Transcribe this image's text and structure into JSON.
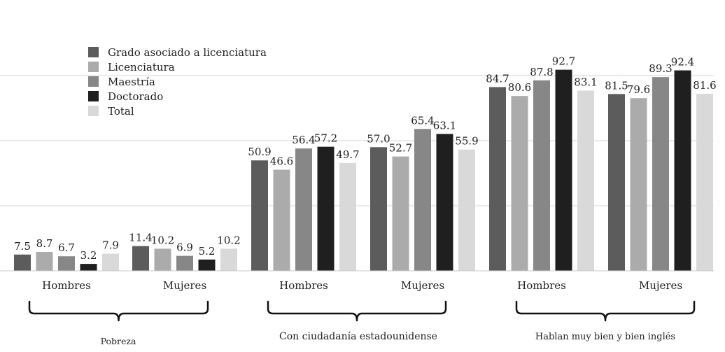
{
  "chart_data": {
    "type": "bar",
    "categories": [
      "Hombres",
      "Mujeres",
      "Hombres",
      "Mujeres",
      "Hombres",
      "Mujeres"
    ],
    "groups": [
      {
        "label": "Pobreza",
        "categories": [
          0,
          1
        ]
      },
      {
        "label": "Con ciudadanía estadounidense",
        "categories": [
          2,
          3
        ]
      },
      {
        "label": "Hablan muy bien y bien inglés",
        "categories": [
          4,
          5
        ]
      }
    ],
    "series": [
      {
        "name": "Grado asociado a licenciatura",
        "color": "#5c5c5c",
        "values": [
          7.5,
          11.4,
          50.9,
          57.0,
          84.7,
          81.5
        ]
      },
      {
        "name": "Licenciatura",
        "color": "#ababab",
        "values": [
          8.7,
          10.2,
          46.6,
          52.7,
          80.6,
          79.6
        ]
      },
      {
        "name": "Maestría",
        "color": "#878787",
        "values": [
          6.7,
          6.9,
          56.4,
          65.4,
          87.8,
          89.3
        ]
      },
      {
        "name": "Doctorado",
        "color": "#1f1f1f",
        "values": [
          3.2,
          5.2,
          57.2,
          63.1,
          92.7,
          92.4
        ]
      },
      {
        "name": "Total",
        "color": "#d9d9d9",
        "values": [
          7.9,
          10.2,
          49.7,
          55.9,
          83.1,
          81.6
        ]
      }
    ],
    "value_labels": [
      [
        "7.5",
        "11.4",
        "50.9",
        "57.0",
        "84.7",
        "81.5"
      ],
      [
        "8.7",
        "10.2",
        "46.6",
        "52.7",
        "80.6",
        "79.6"
      ],
      [
        "6.7",
        "6.9",
        "56.4",
        "65.4",
        "87.8",
        "89.3"
      ],
      [
        "3.2",
        "5.2",
        "57.2",
        "63.1",
        "92.7",
        "92.4"
      ],
      [
        "7.9",
        "10.2",
        "49.7",
        "55.9",
        "83.1",
        "81.6"
      ]
    ],
    "ylim": [
      0,
      100
    ],
    "grid": true,
    "legend_position": "top-left",
    "title": "",
    "xlabel": "",
    "ylabel": ""
  }
}
